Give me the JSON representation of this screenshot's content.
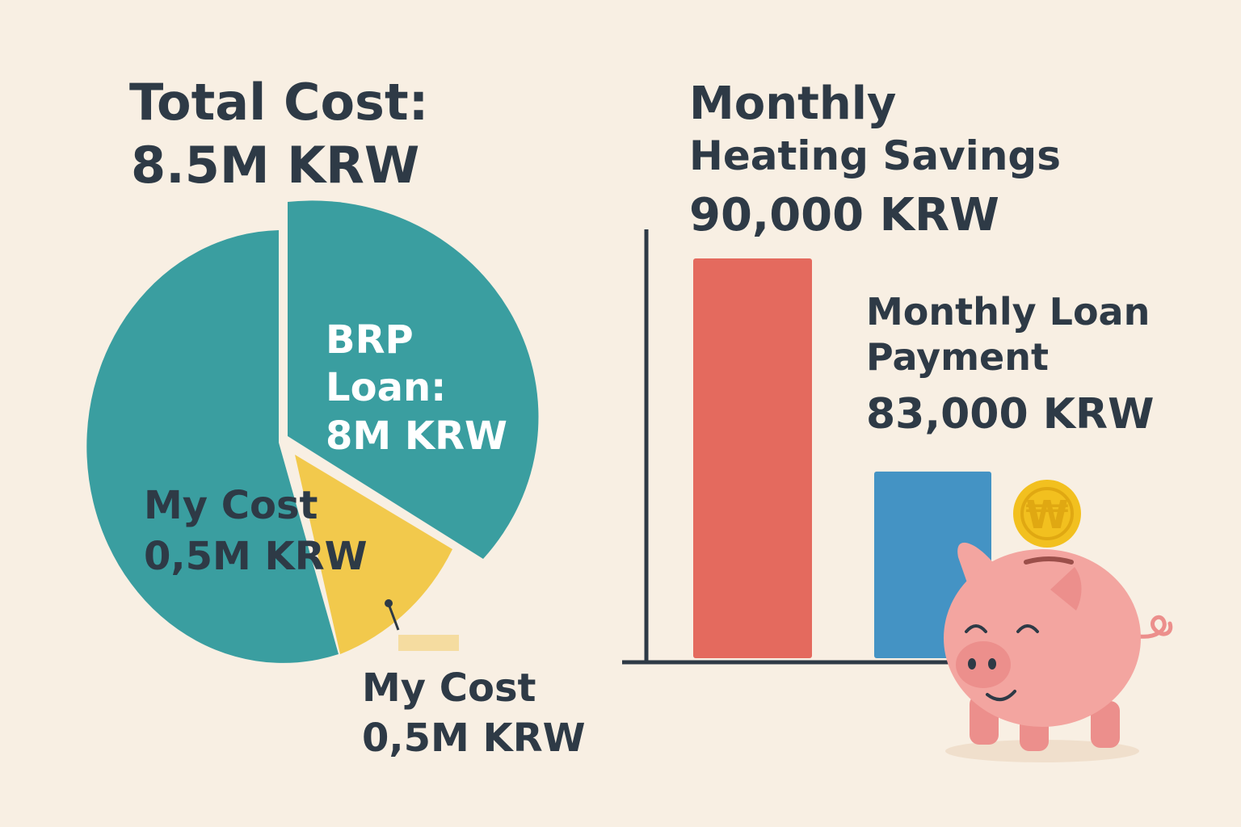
{
  "pie": {
    "title_line1": "Total Cost:",
    "title_line2": "8.5M KRW",
    "loan_label": [
      "BRP",
      "Loan:",
      "8M KRW"
    ],
    "inner_cost_label": [
      "My Cost",
      "0,5M KRW"
    ],
    "callout_label": [
      "My Cost",
      "0,5M KRW"
    ]
  },
  "bars": {
    "heating_label": [
      "Monthly",
      "Heating Savings",
      "90,000 KRW"
    ],
    "loan_label": [
      "Monthly Loan",
      "Payment",
      "83,000 KRW"
    ]
  },
  "piggy": {
    "coin_symbol": "₩"
  },
  "colors": {
    "background": "#f8efe3",
    "teal": "#3a9ea0",
    "yellow": "#f2c94c",
    "red": "#e46a5e",
    "blue": "#4493c4",
    "pink": "#f3a5a0",
    "gold": "#f2c01f",
    "text": "#2e3a46"
  },
  "chart_data": [
    {
      "type": "pie",
      "title": "Total Cost: 8.5M KRW",
      "slices": [
        {
          "label": "BRP Loan",
          "value": 8.0,
          "unit": "M KRW"
        },
        {
          "label": "My Cost",
          "value": 0.5,
          "unit": "M KRW"
        }
      ]
    },
    {
      "type": "bar",
      "categories": [
        "Monthly Heating Savings",
        "Monthly Loan Payment"
      ],
      "values": [
        90000,
        83000
      ],
      "unit": "KRW"
    }
  ]
}
